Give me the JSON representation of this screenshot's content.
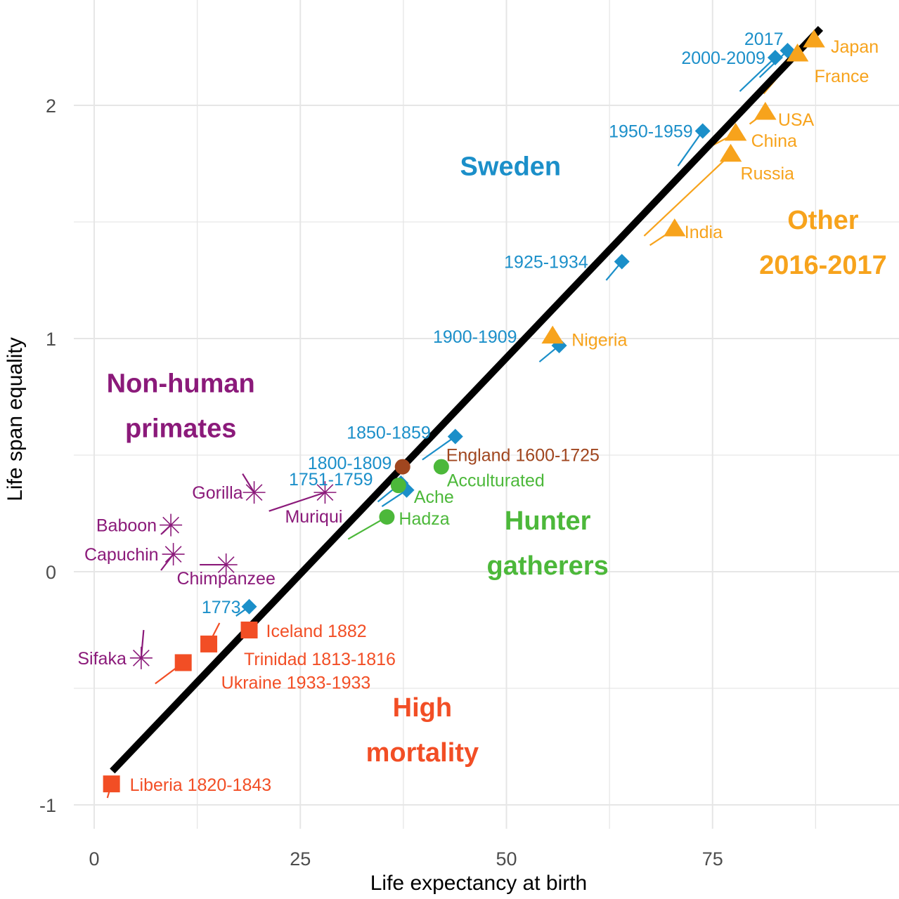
{
  "chart_data": {
    "type": "scatter",
    "title": "",
    "xlabel": "Life expectancy at birth",
    "ylabel": "Life span equality",
    "xlim": [
      -2.5,
      97
    ],
    "ylim": [
      -1.2,
      2.45
    ],
    "x_ticks": [
      0,
      25,
      50,
      75
    ],
    "x_tick_labels": [
      "0",
      "25",
      "50",
      "75"
    ],
    "y_ticks": [
      -1,
      0,
      1,
      2
    ],
    "y_tick_labels": [
      "-1",
      "0",
      "1",
      "2"
    ],
    "grid": true,
    "legend": "none",
    "colors": {
      "sweden": "#1b8fc9",
      "other": "#f7a31c",
      "hunter": "#4cb83a",
      "england": "#a0461f",
      "primates": "#8b1a7a",
      "high_mortality": "#f24e25",
      "regression": "#000000",
      "grid": "#e6e6e6"
    },
    "regression_line": {
      "x": [
        2.2,
        88.1
      ],
      "y": [
        -0.855,
        2.33
      ]
    },
    "groups": [
      {
        "name": "Sweden",
        "color_key": "sweden",
        "label_lines": [
          "Sweden"
        ],
        "label_pos": [
          50.5,
          1.7
        ]
      },
      {
        "name": "Other 2016-2017",
        "color_key": "other",
        "label_lines": [
          "Other",
          "2016-2017"
        ],
        "label_pos": [
          88.4,
          1.47
        ]
      },
      {
        "name": "Non-human primates",
        "color_key": "primates",
        "label_lines": [
          "Non-human",
          "primates"
        ],
        "label_pos": [
          10.5,
          0.77
        ]
      },
      {
        "name": "Hunter gatherers",
        "color_key": "hunter",
        "label_lines": [
          "Hunter",
          "gatherers"
        ],
        "label_pos": [
          55,
          0.18
        ]
      },
      {
        "name": "High mortality",
        "color_key": "high_mortality",
        "label_lines": [
          "High",
          "mortality"
        ],
        "label_pos": [
          39.8,
          -0.62
        ]
      }
    ],
    "series": [
      {
        "name": "2017",
        "group": "Sweden",
        "shape": "diamond",
        "x": 84.1,
        "y": 2.235,
        "prev_x": 80.7,
        "prev_y": 2.12,
        "label_anchor": "end",
        "label_dx": -6,
        "label_dy": -8
      },
      {
        "name": "2000-2009",
        "group": "Sweden",
        "shape": "diamond",
        "x": 82.6,
        "y": 2.205,
        "prev_x": 78.3,
        "prev_y": 2.06,
        "label_anchor": "end",
        "label_dx": -14,
        "label_dy": 9
      },
      {
        "name": "1950-1959",
        "group": "Sweden",
        "shape": "diamond",
        "x": 73.8,
        "y": 1.89,
        "prev_x": 70.8,
        "prev_y": 1.74,
        "label_anchor": "end",
        "label_dx": -14,
        "label_dy": 9
      },
      {
        "name": "1925-1934",
        "group": "Sweden",
        "shape": "diamond",
        "x": 64.0,
        "y": 1.33,
        "prev_x": 62.1,
        "prev_y": 1.25,
        "label_anchor": "end",
        "label_dx": -48,
        "label_dy": 9
      },
      {
        "name": "1900-1909",
        "group": "Sweden",
        "shape": "diamond",
        "x": 56.4,
        "y": 0.97,
        "prev_x": 54.0,
        "prev_y": 0.9,
        "label_anchor": "end",
        "label_dx": -60,
        "label_dy": -4
      },
      {
        "name": "1850-1859",
        "group": "Sweden",
        "shape": "diamond",
        "x": 43.8,
        "y": 0.58,
        "prev_x": 39.8,
        "prev_y": 0.48,
        "label_anchor": "end",
        "label_dx": -35,
        "label_dy": 3
      },
      {
        "name": "1800-1809",
        "group": "Sweden",
        "shape": "diamond",
        "x": 37.2,
        "y": 0.38,
        "prev_x": 34.4,
        "prev_y": 0.3,
        "label_anchor": "end",
        "label_dx": -13,
        "label_dy": -20
      },
      {
        "name": "1751-1759",
        "group": "Sweden",
        "shape": "diamond",
        "x": 37.9,
        "y": 0.35,
        "prev_x": 34.9,
        "prev_y": 0.28,
        "label_anchor": "end",
        "label_dx": -48,
        "label_dy": -7
      },
      {
        "name": "1773",
        "group": "Sweden",
        "shape": "diamond",
        "x": 18.8,
        "y": -0.15,
        "prev_x": 17.2,
        "prev_y": -0.19,
        "label_anchor": "end",
        "label_dx": -12,
        "label_dy": 9
      },
      {
        "name": "Japan",
        "group": "Other 2016-2017",
        "shape": "triangle",
        "x": 87.3,
        "y": 2.28,
        "prev_x": 81.2,
        "prev_y": 2.075,
        "label_anchor": "start",
        "label_dx": 24,
        "label_dy": 18
      },
      {
        "name": "France",
        "group": "Other 2016-2017",
        "shape": "triangle",
        "x": 85.3,
        "y": 2.22,
        "prev_x": 81.2,
        "prev_y": 2.05,
        "label_anchor": "start",
        "label_dx": 24,
        "label_dy": 40
      },
      {
        "name": "USA",
        "group": "Other 2016-2017",
        "shape": "triangle",
        "x": 81.4,
        "y": 1.97,
        "prev_x": 79.5,
        "prev_y": 1.92,
        "label_anchor": "start",
        "label_dx": 18,
        "label_dy": 19
      },
      {
        "name": "China",
        "group": "Other 2016-2017",
        "shape": "triangle",
        "x": 77.8,
        "y": 1.88,
        "prev_x": 75.1,
        "prev_y": 1.83,
        "label_anchor": "start",
        "label_dx": 22,
        "label_dy": 19
      },
      {
        "name": "Russia",
        "group": "Other 2016-2017",
        "shape": "triangle",
        "x": 77.2,
        "y": 1.79,
        "prev_x": 66.7,
        "prev_y": 1.44,
        "label_anchor": "start",
        "label_dx": 14,
        "label_dy": 36
      },
      {
        "name": "India",
        "group": "Other 2016-2017",
        "shape": "triangle",
        "x": 70.4,
        "y": 1.47,
        "prev_x": 67.4,
        "prev_y": 1.4,
        "label_anchor": "start",
        "label_dx": 14,
        "label_dy": 13
      },
      {
        "name": "Nigeria",
        "group": "Other 2016-2017",
        "shape": "triangle",
        "x": 55.6,
        "y": 1.01,
        "prev_x": 55.6,
        "prev_y": 1.01,
        "label_anchor": "start",
        "label_dx": 27,
        "label_dy": 14
      },
      {
        "name": "England 1600-1725",
        "group": "England",
        "shape": "circle",
        "x": 37.4,
        "y": 0.45,
        "prev_x": 37.4,
        "prev_y": 0.45,
        "label_anchor": "start",
        "label_dx": 62,
        "label_dy": -8
      },
      {
        "name": "Acculturated",
        "group": "Hunter gatherers",
        "shape": "circle",
        "x": 42.1,
        "y": 0.45,
        "prev_x": 42.1,
        "prev_y": 0.45,
        "label_anchor": "start",
        "label_dx": 8,
        "label_dy": 28
      },
      {
        "name": "Ache",
        "group": "Hunter gatherers",
        "shape": "circle",
        "x": 36.9,
        "y": 0.37,
        "prev_x": 36.9,
        "prev_y": 0.37,
        "label_anchor": "start",
        "label_dx": 22,
        "label_dy": 25
      },
      {
        "name": "Hadza",
        "group": "Hunter gatherers",
        "shape": "circle",
        "x": 35.5,
        "y": 0.235,
        "prev_x": 30.8,
        "prev_y": 0.14,
        "label_anchor": "start",
        "label_dx": 17,
        "label_dy": 11
      },
      {
        "name": "Iceland 1882",
        "group": "High mortality",
        "shape": "square",
        "x": 18.8,
        "y": -0.25,
        "prev_x": 17.0,
        "prev_y": -0.31,
        "label_anchor": "start",
        "label_dx": 24,
        "label_dy": 10
      },
      {
        "name": "Trinidad 1813-1816",
        "group": "High mortality",
        "shape": "square",
        "x": 13.9,
        "y": -0.31,
        "prev_x": 15.2,
        "prev_y": -0.22,
        "label_anchor": "start",
        "label_dx": 50,
        "label_dy": 30
      },
      {
        "name": "Ukraine 1933-1933",
        "group": "High mortality",
        "shape": "square",
        "x": 10.8,
        "y": -0.39,
        "prev_x": 7.4,
        "prev_y": -0.48,
        "label_anchor": "start",
        "label_dx": 54,
        "label_dy": 37
      },
      {
        "name": "Liberia 1820-1843",
        "group": "High mortality",
        "shape": "square",
        "x": 2.1,
        "y": -0.91,
        "prev_x": 1.6,
        "prev_y": -0.97,
        "label_anchor": "start",
        "label_dx": 26,
        "label_dy": 10
      },
      {
        "name": "Gorilla",
        "group": "Non-human primates",
        "shape": "asterisk",
        "x": 19.4,
        "y": 0.34,
        "prev_x": 18.0,
        "prev_y": 0.42,
        "label_anchor": "end",
        "label_dx": -16,
        "label_dy": 9
      },
      {
        "name": "Muriqui",
        "group": "Non-human primates",
        "shape": "asterisk",
        "x": 28.0,
        "y": 0.34,
        "prev_x": 21.2,
        "prev_y": 0.26,
        "label_anchor": "end",
        "label_dx": 25,
        "label_dy": 43
      },
      {
        "name": "Baboon",
        "group": "Non-human primates",
        "shape": "asterisk",
        "x": 9.3,
        "y": 0.2,
        "prev_x": 8.1,
        "prev_y": 0.16,
        "label_anchor": "end",
        "label_dx": -20,
        "label_dy": 9
      },
      {
        "name": "Capuchin",
        "group": "Non-human primates",
        "shape": "asterisk",
        "x": 9.6,
        "y": 0.075,
        "prev_x": 8.1,
        "prev_y": 0.006,
        "label_anchor": "end",
        "label_dx": -21,
        "label_dy": 9
      },
      {
        "name": "Chimpanzee",
        "group": "Non-human primates",
        "shape": "asterisk",
        "x": 16.0,
        "y": 0.03,
        "prev_x": 12.8,
        "prev_y": 0.03,
        "label_anchor": "middle",
        "label_dx": 0,
        "label_dy": 28
      },
      {
        "name": "Sifaka",
        "group": "Non-human primates",
        "shape": "asterisk",
        "x": 5.7,
        "y": -0.37,
        "prev_x": 6.0,
        "prev_y": -0.25,
        "label_anchor": "end",
        "label_dx": -21,
        "label_dy": 9
      }
    ]
  }
}
